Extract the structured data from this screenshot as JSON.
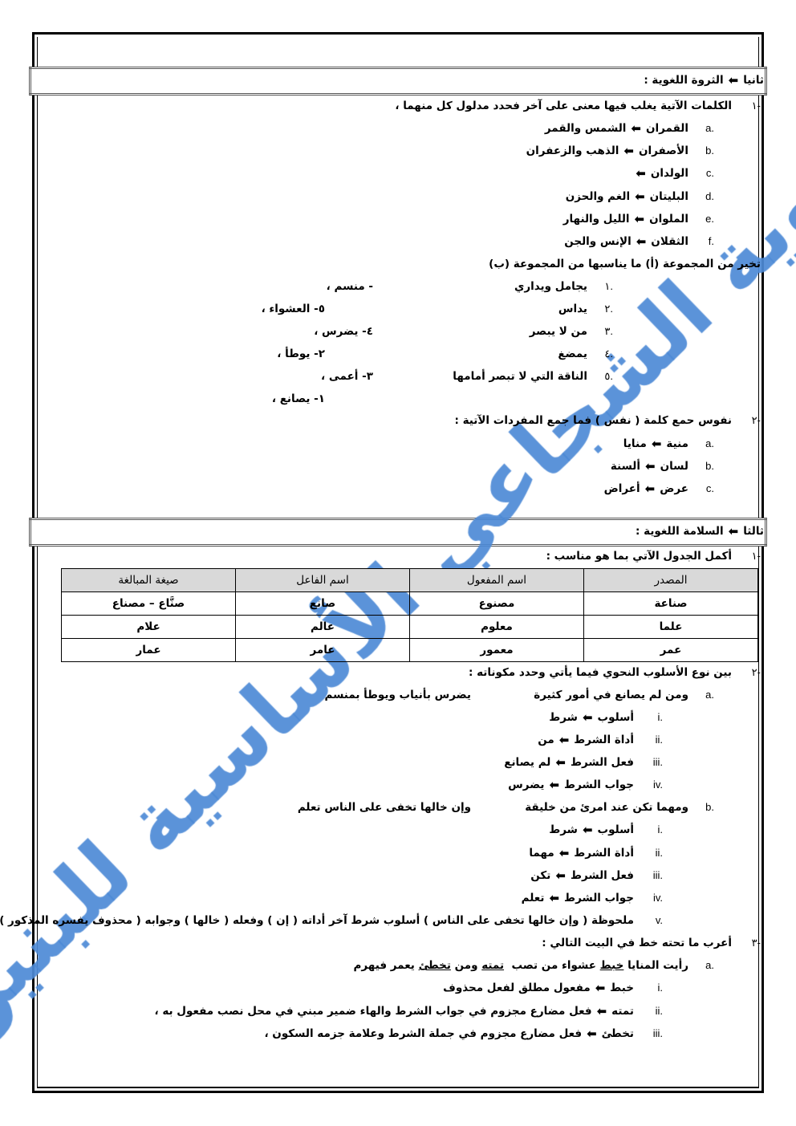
{
  "watermark": "ثانوية الشجاعي الأساسية للبنين",
  "colors": {
    "watermark": "#4d8ad6",
    "table_header": "#d9d9d9"
  },
  "icons": {
    "arrow": "arrow-left-icon"
  },
  "section2": {
    "header": {
      "label": "ثانيا",
      "title": "الثروة اللغوية :"
    },
    "q1": {
      "num": "١-",
      "text": "الكلمات الآتية يغلب فيها معنى على آخر فحدد مدلول كل منهما ،",
      "items": [
        {
          "mk": "a.",
          "term": "القمران",
          "meaning": "الشمس والقمر"
        },
        {
          "mk": "b.",
          "term": "الأصفران",
          "meaning": "الذهب والزعفران"
        },
        {
          "mk": "c.",
          "term": "الولدان",
          "meaning": ""
        },
        {
          "mk": "d.",
          "term": "البليتان",
          "meaning": "الغم والحزن"
        },
        {
          "mk": "e.",
          "term": "الملوان",
          "meaning": "الليل والنهار"
        },
        {
          "mk": "f.",
          "term": "الثقلان",
          "meaning": "الإنس والجن"
        }
      ]
    },
    "match": {
      "text": "تخير من المجموعة (أ) ما يناسبها من المجموعة (ب)",
      "group_a": [
        {
          "mk": "١.",
          "text": "يجامل ويداري"
        },
        {
          "mk": "٢.",
          "text": "يداس"
        },
        {
          "mk": "٣.",
          "text": "من لا يبصر"
        },
        {
          "mk": "٤.",
          "text": "يمضغ"
        },
        {
          "mk": "٥.",
          "text": "الناقة التي لا تبصر أمامها"
        }
      ],
      "group_b": [
        "- منسم ،",
        "٥- العشواء ،",
        "٤- يضرس ،",
        "٢- يوطأ ،",
        "٣- أعمى ،",
        "١- يصانع ،"
      ]
    },
    "q2": {
      "num": "٢-",
      "text": "نفوس حمع كلمة ( نفس ) فما جمع المفردات الآتية :",
      "items": [
        {
          "mk": "a.",
          "term": "منية",
          "meaning": "منايا"
        },
        {
          "mk": "b.",
          "term": "لسان",
          "meaning": "ألسنة"
        },
        {
          "mk": "c.",
          "term": "عرض",
          "meaning": "أعراض"
        }
      ]
    }
  },
  "section3": {
    "header": {
      "label": "ثالثا",
      "title": "السلامة اللغوية :"
    },
    "q1": {
      "num": "١-",
      "text": "أكمل الجدول الآتي بما هو مناسب :",
      "table": {
        "headers": [
          "المصدر",
          "اسم المفعول",
          "اسم الفاعل",
          "صيغة المبالغة"
        ],
        "rows": [
          [
            "صناعة",
            "مصنوع",
            "صانع",
            "صنَّاع – مصناع"
          ],
          [
            "علما",
            "معلوم",
            "عالم",
            "علام"
          ],
          [
            "عمر",
            "معمور",
            "عامر",
            "عمار"
          ]
        ]
      }
    },
    "q2": {
      "num": "٢-",
      "text": "بين نوع الأسلوب النحوي فيما يأتي وحدد مكوناته :",
      "a": {
        "mk": "a.",
        "first": "ومن لم يصانع في أمور كثيرة",
        "second": "يضرس بأنياب ويوطأ بمنسم",
        "items": [
          {
            "mk": "i.",
            "term": "أسلوب",
            "meaning": "شرط"
          },
          {
            "mk": "ii.",
            "term": "أداة الشرط",
            "meaning": "من"
          },
          {
            "mk": "iii.",
            "term": "فعل الشرط",
            "meaning": "لم يصانع"
          },
          {
            "mk": "iv.",
            "term": "جواب الشرط",
            "meaning": "يضرس"
          }
        ]
      },
      "b": {
        "mk": "b.",
        "first": "ومهما تكن عند امرئ من خليقة",
        "second": "وإن خالها تخفى على الناس تعلم",
        "items": [
          {
            "mk": "i.",
            "term": "أسلوب",
            "meaning": "شرط"
          },
          {
            "mk": "ii.",
            "term": "أداة الشرط",
            "meaning": "مهما"
          },
          {
            "mk": "iii.",
            "term": "فعل الشرط",
            "meaning": "تكن"
          },
          {
            "mk": "iv.",
            "term": "جواب الشرط",
            "meaning": "تعلم"
          }
        ]
      },
      "note": {
        "mk": "v.",
        "text": "ملحوظة ( وإن خالها تخفى على الناس ) أسلوب شرط آخر أداته ( إن ) وفعله ( خالها ) وجوابه ( محذوف يفسره المذكور )"
      }
    },
    "q3": {
      "num": "٣-",
      "text": "أعرب ما تحته خط في البيت التالي :",
      "a": {
        "mk": "a.",
        "parts": [
          "رأيت المنايا ",
          "خبط",
          " عشواء من تصب  ",
          "تمته",
          " ومن ",
          "تخطئ",
          " يعمر فيهرم"
        ]
      },
      "items": [
        {
          "mk": "i.",
          "term": "خبط",
          "meaning": "مفعول مطلق لفعل محذوف"
        },
        {
          "mk": "ii.",
          "term": "تمته",
          "meaning": "فعل مضارع مجزوم في جواب الشرط والهاء ضمير مبني في محل نصب مفعول به ،"
        },
        {
          "mk": "iii.",
          "term": "تخطئ",
          "meaning": "فعل مضارع مجزوم في جملة الشرط وعلامة جزمه السكون ،"
        }
      ]
    }
  }
}
